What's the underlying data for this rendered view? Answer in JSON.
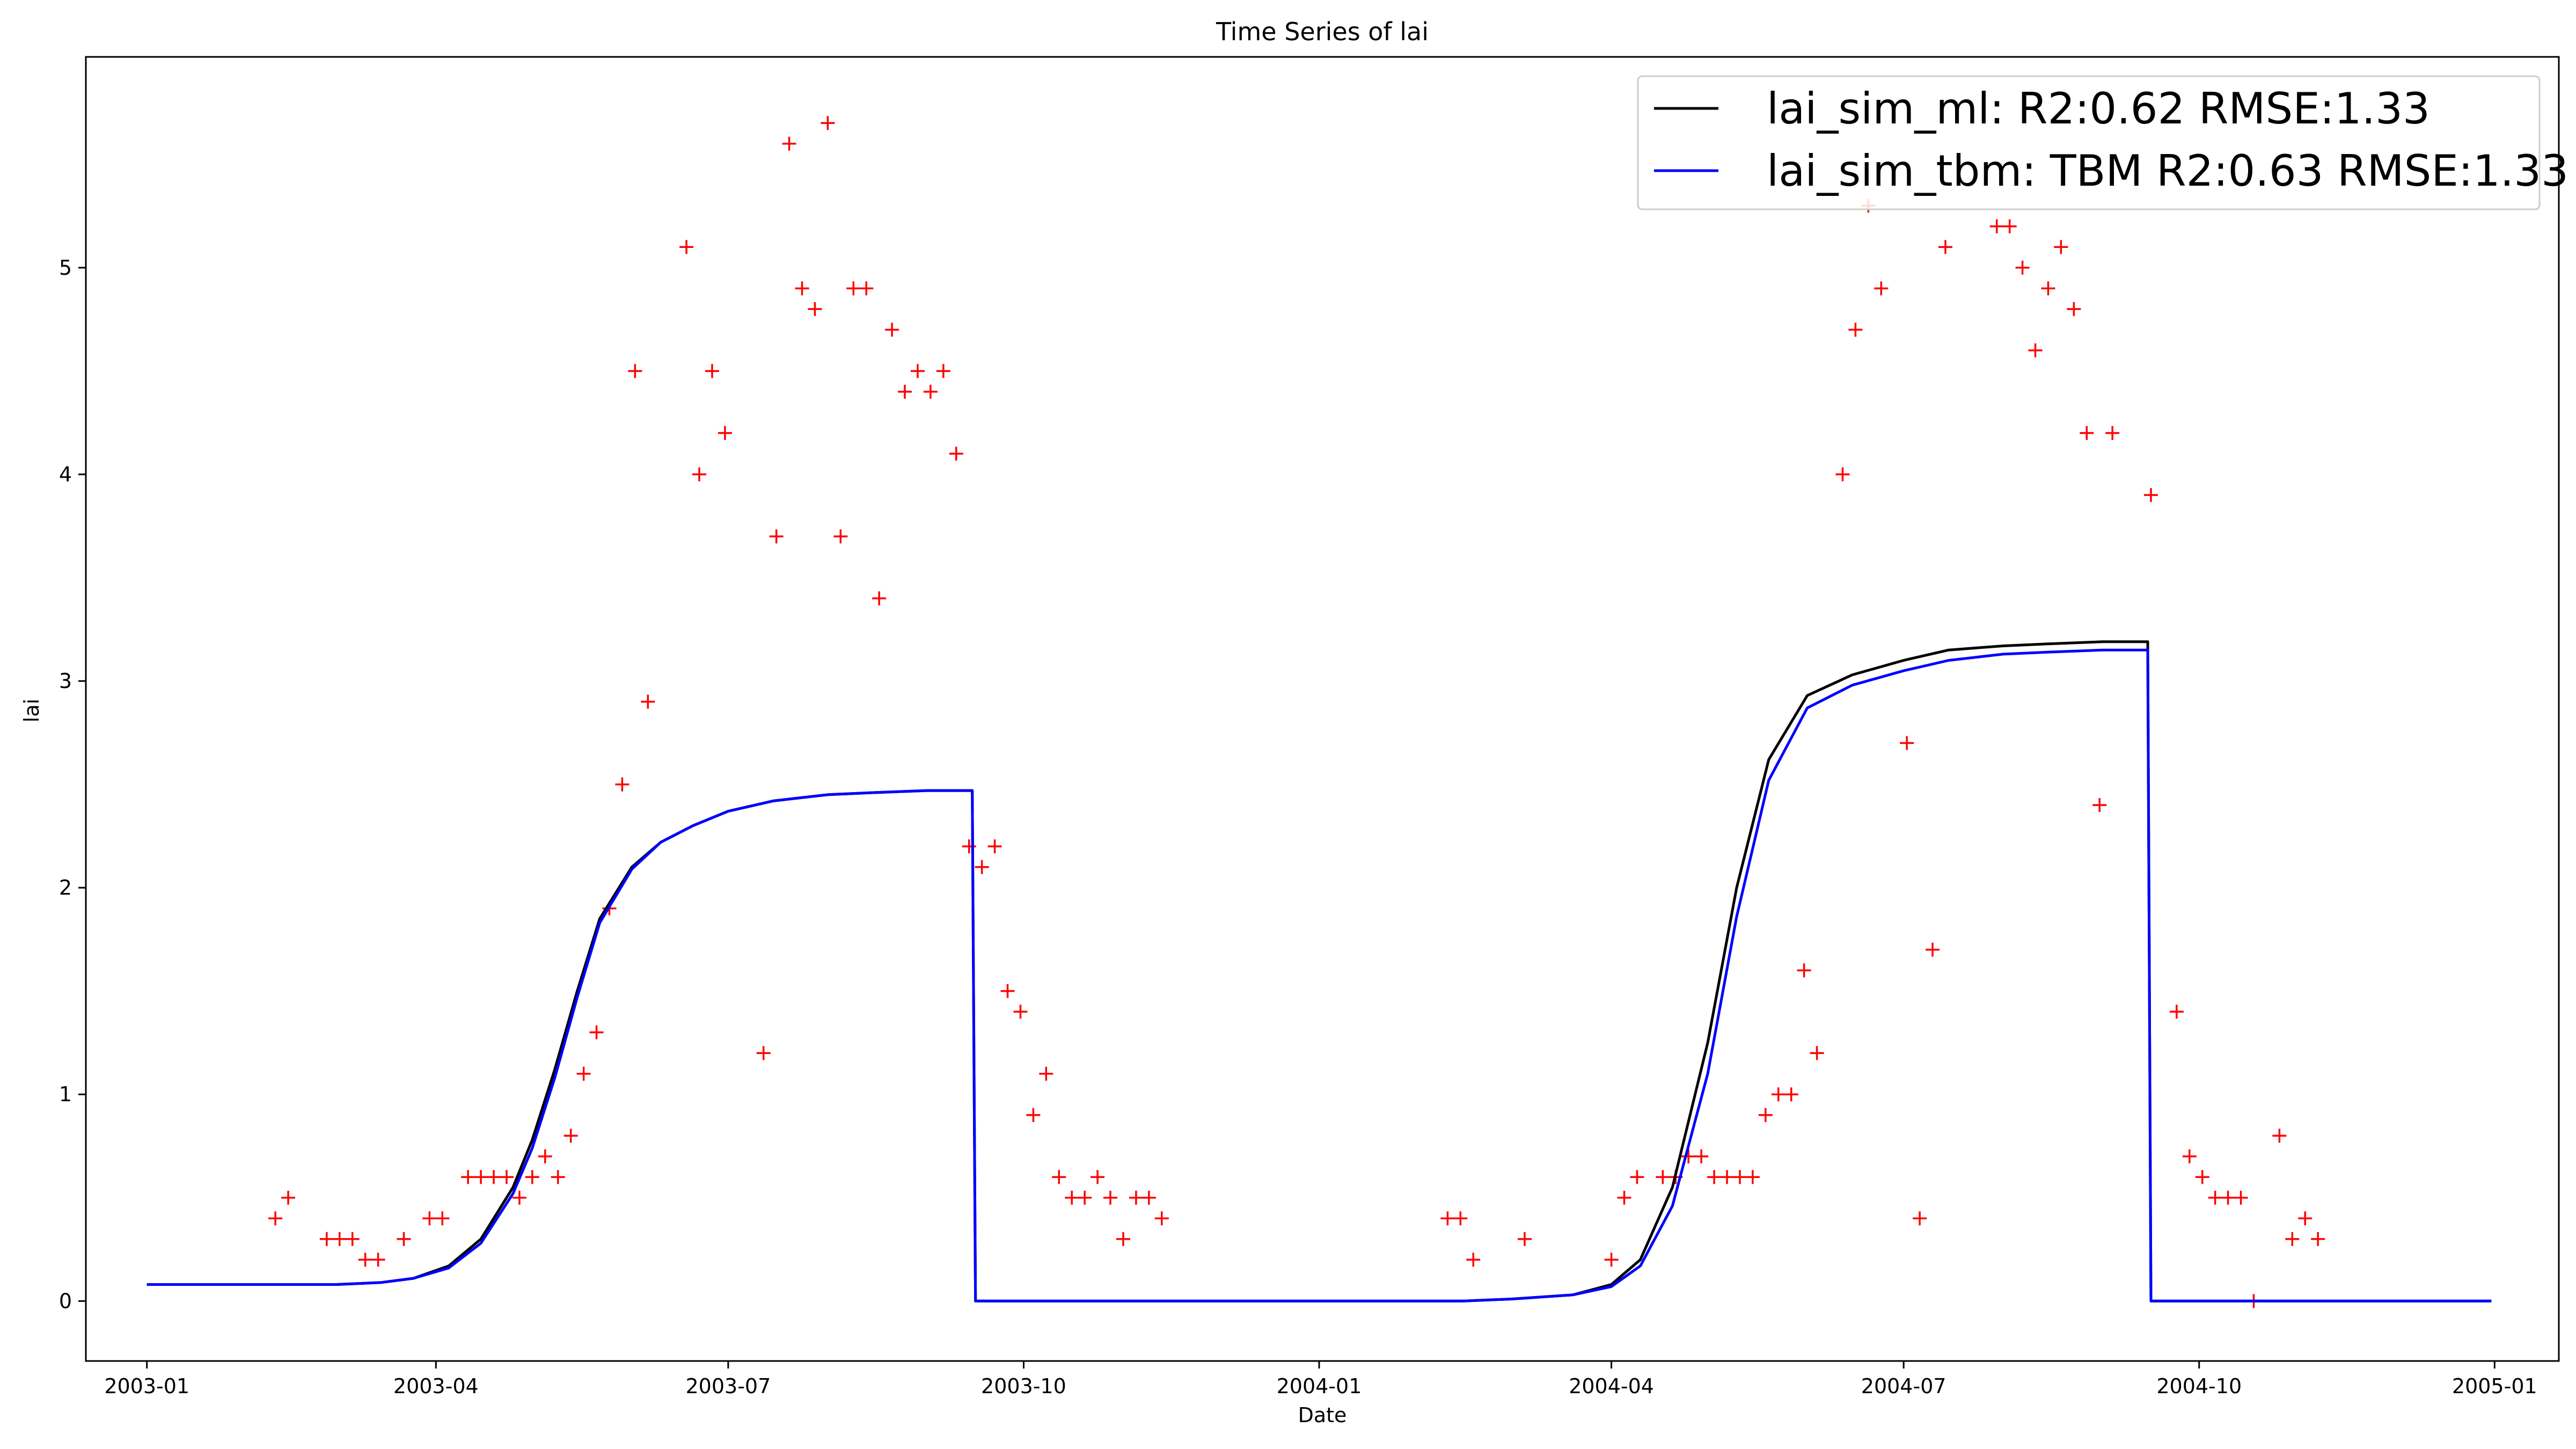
{
  "chart_data": {
    "type": "line",
    "title": "Time Series of lai",
    "xlabel": "Date",
    "ylabel": "lai",
    "x_ticks": [
      "2003-01",
      "2003-04",
      "2003-07",
      "2003-10",
      "2004-01",
      "2004-04",
      "2004-07",
      "2004-10",
      "2005-01"
    ],
    "y_ticks": [
      "0",
      "1",
      "2",
      "3",
      "4",
      "5"
    ],
    "xlim": [
      "2002-12-13",
      "2005-01-21"
    ],
    "ylim": [
      -0.29,
      6.02
    ],
    "grid": false,
    "legend": {
      "placement": "top-right"
    },
    "series": [
      {
        "name": "lai_sim_ml: R2:0.62 RMSE:1.33",
        "kind": "line",
        "color": "#000000",
        "points": [
          [
            "2003-01-01",
            0.08
          ],
          [
            "2003-02-01",
            0.08
          ],
          [
            "2003-03-01",
            0.08
          ],
          [
            "2003-03-15",
            0.09
          ],
          [
            "2003-03-25",
            0.11
          ],
          [
            "2003-04-05",
            0.17
          ],
          [
            "2003-04-15",
            0.3
          ],
          [
            "2003-04-25",
            0.55
          ],
          [
            "2003-05-01",
            0.78
          ],
          [
            "2003-05-08",
            1.12
          ],
          [
            "2003-05-15",
            1.5
          ],
          [
            "2003-05-22",
            1.85
          ],
          [
            "2003-06-01",
            2.1
          ],
          [
            "2003-06-10",
            2.22
          ],
          [
            "2003-06-20",
            2.3
          ],
          [
            "2003-07-01",
            2.37
          ],
          [
            "2003-07-15",
            2.42
          ],
          [
            "2003-08-01",
            2.45
          ],
          [
            "2003-08-15",
            2.46
          ],
          [
            "2003-09-01",
            2.47
          ],
          [
            "2003-09-15",
            2.47
          ],
          [
            "2003-09-16",
            0.0
          ],
          [
            "2003-10-01",
            0.0
          ],
          [
            "2004-01-01",
            0.0
          ],
          [
            "2004-02-15",
            0.0
          ],
          [
            "2004-03-01",
            0.01
          ],
          [
            "2004-03-20",
            0.03
          ],
          [
            "2004-04-01",
            0.08
          ],
          [
            "2004-04-10",
            0.2
          ],
          [
            "2004-04-20",
            0.55
          ],
          [
            "2004-05-01",
            1.25
          ],
          [
            "2004-05-10",
            2.0
          ],
          [
            "2004-05-20",
            2.62
          ],
          [
            "2004-06-01",
            2.93
          ],
          [
            "2004-06-15",
            3.03
          ],
          [
            "2004-07-01",
            3.1
          ],
          [
            "2004-07-15",
            3.15
          ],
          [
            "2004-08-01",
            3.17
          ],
          [
            "2004-08-15",
            3.18
          ],
          [
            "2004-09-01",
            3.19
          ],
          [
            "2004-09-15",
            3.19
          ],
          [
            "2004-09-16",
            0.0
          ],
          [
            "2004-10-01",
            0.0
          ],
          [
            "2004-11-01",
            0.0
          ],
          [
            "2004-12-31",
            0.0
          ]
        ]
      },
      {
        "name": "lai_sim_tbm: TBM R2:0.63 RMSE:1.33",
        "kind": "line",
        "color": "#0000ff",
        "points": [
          [
            "2003-01-01",
            0.08
          ],
          [
            "2003-02-01",
            0.08
          ],
          [
            "2003-03-01",
            0.08
          ],
          [
            "2003-03-15",
            0.09
          ],
          [
            "2003-03-25",
            0.11
          ],
          [
            "2003-04-05",
            0.16
          ],
          [
            "2003-04-15",
            0.28
          ],
          [
            "2003-04-25",
            0.52
          ],
          [
            "2003-05-01",
            0.74
          ],
          [
            "2003-05-08",
            1.08
          ],
          [
            "2003-05-15",
            1.47
          ],
          [
            "2003-05-22",
            1.83
          ],
          [
            "2003-06-01",
            2.09
          ],
          [
            "2003-06-10",
            2.22
          ],
          [
            "2003-06-20",
            2.3
          ],
          [
            "2003-07-01",
            2.37
          ],
          [
            "2003-07-15",
            2.42
          ],
          [
            "2003-08-01",
            2.45
          ],
          [
            "2003-08-15",
            2.46
          ],
          [
            "2003-09-01",
            2.47
          ],
          [
            "2003-09-15",
            2.47
          ],
          [
            "2003-09-16",
            0.0
          ],
          [
            "2003-10-01",
            0.0
          ],
          [
            "2004-01-01",
            0.0
          ],
          [
            "2004-02-15",
            0.0
          ],
          [
            "2004-03-01",
            0.01
          ],
          [
            "2004-03-20",
            0.03
          ],
          [
            "2004-04-01",
            0.07
          ],
          [
            "2004-04-10",
            0.17
          ],
          [
            "2004-04-20",
            0.46
          ],
          [
            "2004-05-01",
            1.1
          ],
          [
            "2004-05-10",
            1.86
          ],
          [
            "2004-05-20",
            2.52
          ],
          [
            "2004-06-01",
            2.87
          ],
          [
            "2004-06-15",
            2.98
          ],
          [
            "2004-07-01",
            3.05
          ],
          [
            "2004-07-15",
            3.1
          ],
          [
            "2004-08-01",
            3.13
          ],
          [
            "2004-08-15",
            3.14
          ],
          [
            "2004-09-01",
            3.15
          ],
          [
            "2004-09-15",
            3.15
          ],
          [
            "2004-09-16",
            0.0
          ],
          [
            "2004-10-01",
            0.0
          ],
          [
            "2004-11-01",
            0.0
          ],
          [
            "2004-12-31",
            0.0
          ]
        ]
      },
      {
        "kind": "scatter",
        "marker": "+",
        "color": "#ff0000",
        "points": [
          [
            "2003-02-10",
            0.4
          ],
          [
            "2003-02-14",
            0.5
          ],
          [
            "2003-02-26",
            0.3
          ],
          [
            "2003-03-02",
            0.3
          ],
          [
            "2003-03-06",
            0.3
          ],
          [
            "2003-03-10",
            0.2
          ],
          [
            "2003-03-14",
            0.2
          ],
          [
            "2003-03-22",
            0.3
          ],
          [
            "2003-03-30",
            0.4
          ],
          [
            "2003-04-03",
            0.4
          ],
          [
            "2003-04-11",
            0.6
          ],
          [
            "2003-04-15",
            0.6
          ],
          [
            "2003-04-19",
            0.6
          ],
          [
            "2003-04-23",
            0.6
          ],
          [
            "2003-04-27",
            0.5
          ],
          [
            "2003-05-01",
            0.6
          ],
          [
            "2003-05-05",
            0.7
          ],
          [
            "2003-05-09",
            0.6
          ],
          [
            "2003-05-13",
            0.8
          ],
          [
            "2003-05-17",
            1.1
          ],
          [
            "2003-05-21",
            1.3
          ],
          [
            "2003-05-25",
            1.9
          ],
          [
            "2003-05-29",
            2.5
          ],
          [
            "2003-06-02",
            4.5
          ],
          [
            "2003-06-06",
            2.9
          ],
          [
            "2003-06-18",
            5.1
          ],
          [
            "2003-06-22",
            4.0
          ],
          [
            "2003-06-26",
            4.5
          ],
          [
            "2003-06-30",
            4.2
          ],
          [
            "2003-07-12",
            1.2
          ],
          [
            "2003-07-16",
            3.7
          ],
          [
            "2003-07-20",
            5.6
          ],
          [
            "2003-07-24",
            4.9
          ],
          [
            "2003-07-28",
            4.8
          ],
          [
            "2003-08-01",
            5.7
          ],
          [
            "2003-08-05",
            3.7
          ],
          [
            "2003-08-09",
            4.9
          ],
          [
            "2003-08-13",
            4.9
          ],
          [
            "2003-08-17",
            3.4
          ],
          [
            "2003-08-21",
            4.7
          ],
          [
            "2003-08-25",
            4.4
          ],
          [
            "2003-08-29",
            4.5
          ],
          [
            "2003-09-02",
            4.4
          ],
          [
            "2003-09-06",
            4.5
          ],
          [
            "2003-09-10",
            4.1
          ],
          [
            "2003-09-14",
            2.2
          ],
          [
            "2003-09-18",
            2.1
          ],
          [
            "2003-09-22",
            2.2
          ],
          [
            "2003-09-26",
            1.5
          ],
          [
            "2003-09-30",
            1.4
          ],
          [
            "2003-10-04",
            0.9
          ],
          [
            "2003-10-08",
            1.1
          ],
          [
            "2003-10-12",
            0.6
          ],
          [
            "2003-10-16",
            0.5
          ],
          [
            "2003-10-20",
            0.5
          ],
          [
            "2003-10-24",
            0.6
          ],
          [
            "2003-10-28",
            0.5
          ],
          [
            "2003-11-01",
            0.3
          ],
          [
            "2003-11-05",
            0.5
          ],
          [
            "2003-11-09",
            0.5
          ],
          [
            "2003-11-13",
            0.4
          ],
          [
            "2004-02-10",
            0.4
          ],
          [
            "2004-02-14",
            0.4
          ],
          [
            "2004-02-18",
            0.2
          ],
          [
            "2004-03-05",
            0.3
          ],
          [
            "2004-04-01",
            0.2
          ],
          [
            "2004-04-05",
            0.5
          ],
          [
            "2004-04-09",
            0.6
          ],
          [
            "2004-04-17",
            0.6
          ],
          [
            "2004-04-21",
            0.6
          ],
          [
            "2004-04-25",
            0.7
          ],
          [
            "2004-04-29",
            0.7
          ],
          [
            "2004-05-03",
            0.6
          ],
          [
            "2004-05-07",
            0.6
          ],
          [
            "2004-05-11",
            0.6
          ],
          [
            "2004-05-15",
            0.6
          ],
          [
            "2004-05-19",
            0.9
          ],
          [
            "2004-05-23",
            1.0
          ],
          [
            "2004-05-27",
            1.0
          ],
          [
            "2004-05-31",
            1.6
          ],
          [
            "2004-06-04",
            1.2
          ],
          [
            "2004-06-12",
            4.0
          ],
          [
            "2004-06-16",
            4.7
          ],
          [
            "2004-06-20",
            5.3
          ],
          [
            "2004-06-24",
            4.9
          ],
          [
            "2004-07-02",
            2.7
          ],
          [
            "2004-07-06",
            0.4
          ],
          [
            "2004-07-10",
            1.7
          ],
          [
            "2004-07-14",
            5.1
          ],
          [
            "2004-07-30",
            5.2
          ],
          [
            "2004-08-03",
            5.2
          ],
          [
            "2004-08-07",
            5.0
          ],
          [
            "2004-08-11",
            4.6
          ],
          [
            "2004-08-15",
            4.9
          ],
          [
            "2004-08-19",
            5.1
          ],
          [
            "2004-08-23",
            4.8
          ],
          [
            "2004-08-27",
            4.2
          ],
          [
            "2004-08-31",
            2.4
          ],
          [
            "2004-09-04",
            4.2
          ],
          [
            "2004-09-16",
            3.9
          ],
          [
            "2004-09-24",
            1.4
          ],
          [
            "2004-09-28",
            0.7
          ],
          [
            "2004-10-02",
            0.6
          ],
          [
            "2004-10-06",
            0.5
          ],
          [
            "2004-10-10",
            0.5
          ],
          [
            "2004-10-14",
            0.5
          ],
          [
            "2004-10-18",
            0.0
          ],
          [
            "2004-10-26",
            0.8
          ],
          [
            "2004-10-30",
            0.3
          ],
          [
            "2004-11-03",
            0.4
          ],
          [
            "2004-11-07",
            0.3
          ]
        ]
      }
    ]
  }
}
